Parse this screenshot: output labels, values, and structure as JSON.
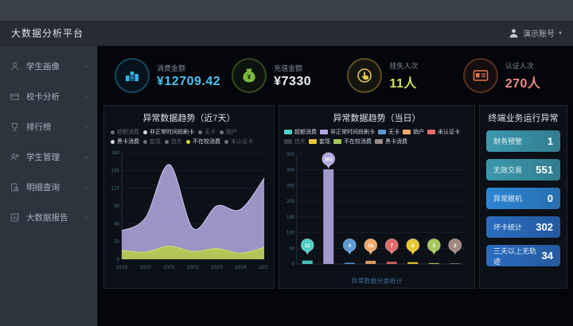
{
  "topbar": {
    "title": "大数据分析平台",
    "user": "演示账号",
    "user_icon": "user-icon",
    "caret": "▾"
  },
  "sidebar": {
    "items": [
      {
        "label": "学生画像",
        "icon": "student-profile-icon"
      },
      {
        "label": "校卡分析",
        "icon": "card-analysis-icon"
      },
      {
        "label": "排行榜",
        "icon": "ranking-icon"
      },
      {
        "label": "学生管理",
        "icon": "student-manage-icon"
      },
      {
        "label": "明细查询",
        "icon": "detail-query-icon"
      },
      {
        "label": "大数据报告",
        "icon": "report-icon"
      }
    ],
    "arrow": "›"
  },
  "kpis": [
    {
      "label": "消费金额",
      "value": "¥12709.42",
      "value_color": "#4cc3f0",
      "icon": "coins-icon",
      "icon_color": "#33b5e8"
    },
    {
      "label": "充值金额",
      "value": "¥7330",
      "value_color": "#edf2ee",
      "icon": "moneybag-icon",
      "icon_color": "#7cb83e"
    },
    {
      "label": "挂失人次",
      "value": "11人",
      "value_color": "#cfe05a",
      "icon": "hand-click-icon",
      "icon_color": "#e5c94c"
    },
    {
      "label": "认证人次",
      "value": "270人",
      "value_color": "#f08a8a",
      "icon": "id-card-icon",
      "icon_color": "#e5764a"
    }
  ],
  "left_panel": {
    "title": "异常数据趋势（近7天）",
    "legend": [
      {
        "label": "超额消费",
        "selected": false,
        "dot": "#6b7280"
      },
      {
        "label": "非正常时间段刷卡",
        "selected": true,
        "dot": "#d6dde6"
      },
      {
        "label": "无卡",
        "selected": false,
        "dot": "#6b7280"
      },
      {
        "label": "销户",
        "selected": false,
        "dot": "#6b7280"
      },
      {
        "label": "黑卡消费",
        "selected": true,
        "dot": "#d6dde6"
      },
      {
        "label": "套现",
        "selected": false,
        "dot": "#6b7280"
      },
      {
        "label": "挂失",
        "selected": false,
        "dot": "#6b7280"
      },
      {
        "label": "不在校消费",
        "selected": true,
        "dot": "#cddc39"
      },
      {
        "label": "未认证卡",
        "selected": false,
        "dot": "#6b7280"
      }
    ]
  },
  "right_panel": {
    "title": "异常数据趋势（当日）",
    "legend": [
      {
        "label": "超额消费",
        "color": "#4dd0c4",
        "selected": true
      },
      {
        "label": "非正常时间段刷卡",
        "color": "#b3a8e0",
        "selected": true
      },
      {
        "label": "无卡",
        "color": "#5b9bd5",
        "selected": true
      },
      {
        "label": "销户",
        "color": "#f0a868",
        "selected": true
      },
      {
        "label": "未认证卡",
        "color": "#e06c6c",
        "selected": true
      },
      {
        "label": "挂失",
        "color": "#6e757e",
        "selected": false
      },
      {
        "label": "套现",
        "color": "#e8c832",
        "selected": true
      },
      {
        "label": "不在校消费",
        "color": "#a4c65a",
        "selected": true
      },
      {
        "label": "黑卡消费",
        "color": "#9b8b86",
        "selected": true
      }
    ],
    "footnote": "异常数据分类统计"
  },
  "side_panel": {
    "title": "终端业务运行异常",
    "items": [
      {
        "label": "财务预警",
        "value": 1,
        "color": "#3b98ad"
      },
      {
        "label": "无效交易",
        "value": 551,
        "color": "#3b98ad"
      },
      {
        "label": "异常脱机",
        "value": 0,
        "color": "#2e86d4"
      },
      {
        "label": "坏卡统计",
        "value": 302,
        "color": "#2a6cc0"
      },
      {
        "label": "三天以上无轨迹",
        "value": 34,
        "color": "#2a6cc0"
      }
    ]
  },
  "chart_data": [
    {
      "type": "area",
      "title": "异常数据趋势（近7天）",
      "x": [
        "10/19",
        "10/20",
        "10/21",
        "10/22",
        "10/23",
        "10/24",
        "10/25"
      ],
      "series": [
        {
          "name": "非正常时间段刷卡",
          "values": [
            48,
            70,
            160,
            52,
            90,
            84,
            137
          ],
          "fill": "#a9a0d4",
          "stroke": "#cfc8ec"
        },
        {
          "name": "不在校消费",
          "values": [
            15,
            12,
            22,
            13,
            18,
            10,
            20
          ],
          "fill": "#b6c94e",
          "stroke": "#d3e06a"
        }
      ],
      "ylim": [
        0,
        180
      ],
      "ystep": 30,
      "grid": true,
      "legend_position": "top"
    },
    {
      "type": "bar",
      "title": "异常数据趋势（当日）",
      "categories": [
        "超额消费",
        "非正常时间段刷卡",
        "无卡",
        "销户",
        "未认证卡",
        "套现",
        "不在校消费",
        "黑卡消费"
      ],
      "values": [
        11,
        302,
        4,
        10,
        7,
        6,
        3,
        2
      ],
      "colors": [
        "#4dd0c4",
        "#b3a8e0",
        "#5b9bd5",
        "#f0a868",
        "#e06c6c",
        "#e8c832",
        "#a4c65a",
        "#a1887f"
      ],
      "ylim": [
        0,
        350
      ],
      "ystep": 50,
      "grid": true,
      "legend_position": "top"
    }
  ]
}
